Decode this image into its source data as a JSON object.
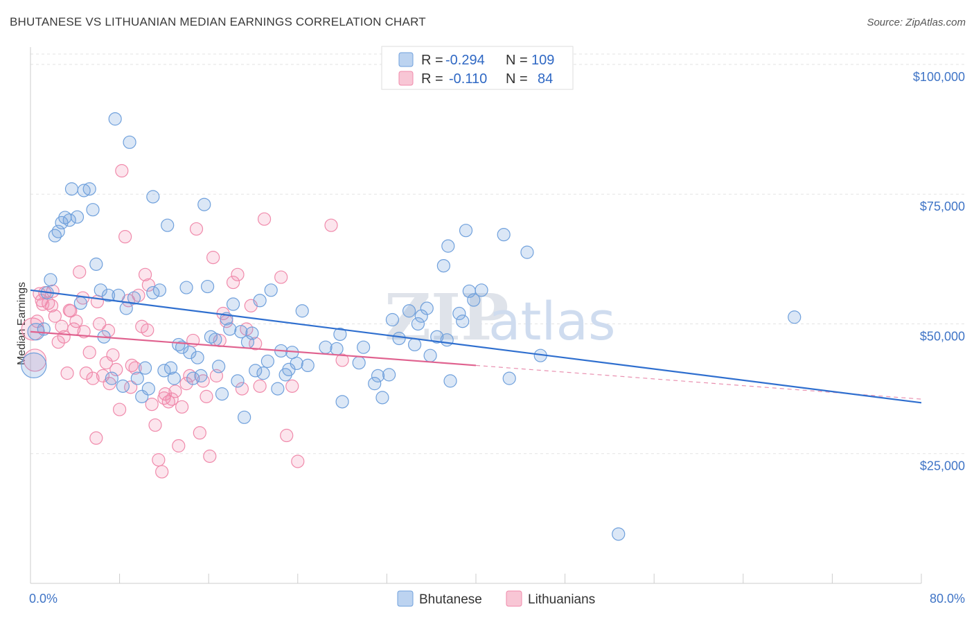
{
  "title": "BHUTANESE VS LITHUANIAN MEDIAN EARNINGS CORRELATION CHART",
  "source": "Source: ZipAtlas.com",
  "watermark": {
    "zip": "ZIP",
    "atlas": "atlas"
  },
  "colors": {
    "bhutanese": "#6fa0dc",
    "lithuanians": "#f08aab",
    "bhutanese_line": "#2f6fcf",
    "lithuanians_line": "#e0628f",
    "tick_text": "#3f74c6"
  },
  "legend_top": {
    "bhutanese": {
      "r_label": "R =",
      "r_value": "-0.294",
      "n_label": "N =",
      "n_value": "109"
    },
    "lithuanians": {
      "r_label": "R =",
      "r_value": "-0.110",
      "n_label": "N =",
      "n_value": "84"
    }
  },
  "legend_bottom": {
    "bhutanese": "Bhutanese",
    "lithuanians": "Lithuanians"
  },
  "chart_data": {
    "type": "scatter",
    "title": "BHUTANESE VS LITHUANIAN MEDIAN EARNINGS CORRELATION CHART",
    "xlabel": "",
    "ylabel": "Median Earnings",
    "x_tick_labels": [
      "0.0%",
      "80.0%"
    ],
    "y_tick_labels": [
      "$25,000",
      "$50,000",
      "$75,000",
      "$100,000"
    ],
    "y_ticks": [
      25000,
      50000,
      75000,
      100000
    ],
    "xlim": [
      0,
      80
    ],
    "ylim": [
      0,
      102000
    ],
    "grid": true,
    "legend_position": "top-center",
    "series": [
      {
        "name": "Bhutanese",
        "points": [
          [
            0.3,
            42000
          ],
          [
            0.5,
            48500
          ],
          [
            1.2,
            49000
          ],
          [
            1.5,
            56000
          ],
          [
            1.8,
            58500
          ],
          [
            2.2,
            67000
          ],
          [
            2.5,
            67800
          ],
          [
            2.8,
            69500
          ],
          [
            3.1,
            70500
          ],
          [
            3.5,
            70000
          ],
          [
            3.7,
            76000
          ],
          [
            4.2,
            70600
          ],
          [
            4.5,
            54000
          ],
          [
            4.8,
            75700
          ],
          [
            5.3,
            76000
          ],
          [
            5.6,
            72000
          ],
          [
            5.9,
            61500
          ],
          [
            6.3,
            56500
          ],
          [
            6.6,
            47500
          ],
          [
            7.0,
            55500
          ],
          [
            7.3,
            39500
          ],
          [
            7.6,
            89500
          ],
          [
            7.9,
            55500
          ],
          [
            8.3,
            38000
          ],
          [
            8.6,
            53000
          ],
          [
            8.9,
            85000
          ],
          [
            9.3,
            55000
          ],
          [
            9.6,
            39500
          ],
          [
            10.0,
            36000
          ],
          [
            10.3,
            41500
          ],
          [
            10.6,
            37500
          ],
          [
            11.0,
            74500
          ],
          [
            11.0,
            56000
          ],
          [
            11.6,
            56500
          ],
          [
            12.0,
            41000
          ],
          [
            12.3,
            69000
          ],
          [
            12.6,
            41500
          ],
          [
            12.9,
            39500
          ],
          [
            13.3,
            46000
          ],
          [
            13.6,
            45500
          ],
          [
            14.0,
            57000
          ],
          [
            14.3,
            44500
          ],
          [
            14.6,
            39500
          ],
          [
            15.0,
            43500
          ],
          [
            15.3,
            40000
          ],
          [
            15.6,
            73000
          ],
          [
            15.9,
            57200
          ],
          [
            16.2,
            47500
          ],
          [
            16.6,
            47000
          ],
          [
            16.9,
            41800
          ],
          [
            17.2,
            36500
          ],
          [
            17.6,
            51000
          ],
          [
            17.9,
            49000
          ],
          [
            18.2,
            53800
          ],
          [
            18.6,
            39000
          ],
          [
            18.9,
            48500
          ],
          [
            19.2,
            32000
          ],
          [
            19.5,
            46500
          ],
          [
            19.9,
            48200
          ],
          [
            20.2,
            41000
          ],
          [
            20.6,
            54500
          ],
          [
            20.9,
            40500
          ],
          [
            21.3,
            42800
          ],
          [
            21.6,
            56500
          ],
          [
            22.2,
            37500
          ],
          [
            22.5,
            44800
          ],
          [
            22.9,
            40200
          ],
          [
            23.2,
            41200
          ],
          [
            23.5,
            44500
          ],
          [
            23.9,
            42400
          ],
          [
            24.4,
            52500
          ],
          [
            24.9,
            42000
          ],
          [
            26.5,
            45500
          ],
          [
            27.5,
            45200
          ],
          [
            27.8,
            48000
          ],
          [
            28.0,
            35000
          ],
          [
            29.5,
            42500
          ],
          [
            29.9,
            45500
          ],
          [
            30.9,
            38500
          ],
          [
            31.2,
            40000
          ],
          [
            31.6,
            35800
          ],
          [
            32.2,
            40200
          ],
          [
            32.5,
            50800
          ],
          [
            33.1,
            47200
          ],
          [
            34.0,
            52500
          ],
          [
            34.5,
            46000
          ],
          [
            34.8,
            50000
          ],
          [
            35.1,
            51500
          ],
          [
            35.6,
            53000
          ],
          [
            35.9,
            43900
          ],
          [
            36.5,
            47500
          ],
          [
            37.1,
            61200
          ],
          [
            37.4,
            46900
          ],
          [
            37.7,
            39000
          ],
          [
            37.5,
            65000
          ],
          [
            38.5,
            52000
          ],
          [
            38.8,
            50500
          ],
          [
            39.1,
            68000
          ],
          [
            39.4,
            56300
          ],
          [
            39.8,
            54600
          ],
          [
            40.5,
            56500
          ],
          [
            42.5,
            67200
          ],
          [
            43.0,
            39500
          ],
          [
            44.6,
            63800
          ],
          [
            45.8,
            43900
          ],
          [
            52.8,
            9500
          ],
          [
            68.6,
            51300
          ]
        ],
        "trend": {
          "x": [
            0,
            80
          ],
          "y": [
            56500,
            34800
          ]
        }
      },
      {
        "name": "Lithuanians",
        "points": [
          [
            0.2,
            49000
          ],
          [
            0.4,
            43000
          ],
          [
            0.6,
            50500
          ],
          [
            1.0,
            54500
          ],
          [
            1.3,
            56000
          ],
          [
            1.6,
            54000
          ],
          [
            1.9,
            53500
          ],
          [
            2.2,
            51500
          ],
          [
            2.5,
            46500
          ],
          [
            2.8,
            49500
          ],
          [
            3.0,
            47500
          ],
          [
            3.3,
            40500
          ],
          [
            3.6,
            52500
          ],
          [
            3.9,
            49000
          ],
          [
            4.1,
            50500
          ],
          [
            4.4,
            60000
          ],
          [
            4.7,
            55000
          ],
          [
            5.0,
            40500
          ],
          [
            5.3,
            44500
          ],
          [
            5.6,
            39500
          ],
          [
            5.9,
            28000
          ],
          [
            6.2,
            50000
          ],
          [
            6.5,
            40000
          ],
          [
            6.8,
            42500
          ],
          [
            7.1,
            38500
          ],
          [
            7.4,
            44000
          ],
          [
            7.7,
            41200
          ],
          [
            8.0,
            33500
          ],
          [
            8.2,
            79500
          ],
          [
            8.5,
            66800
          ],
          [
            8.8,
            54500
          ],
          [
            9.1,
            42000
          ],
          [
            9.4,
            41500
          ],
          [
            9.7,
            55500
          ],
          [
            10.0,
            49500
          ],
          [
            10.3,
            59500
          ],
          [
            10.6,
            57500
          ],
          [
            10.9,
            34500
          ],
          [
            11.2,
            30500
          ],
          [
            11.5,
            23800
          ],
          [
            11.8,
            21500
          ],
          [
            12.1,
            36500
          ],
          [
            12.4,
            35000
          ],
          [
            12.7,
            35500
          ],
          [
            13.0,
            37000
          ],
          [
            13.3,
            26500
          ],
          [
            13.6,
            34000
          ],
          [
            14.0,
            38500
          ],
          [
            14.3,
            40000
          ],
          [
            14.6,
            46800
          ],
          [
            14.9,
            68300
          ],
          [
            15.2,
            29000
          ],
          [
            15.5,
            39000
          ],
          [
            15.8,
            36000
          ],
          [
            16.1,
            24500
          ],
          [
            16.4,
            62800
          ],
          [
            16.7,
            40000
          ],
          [
            17.0,
            46800
          ],
          [
            17.3,
            52000
          ],
          [
            17.6,
            50500
          ],
          [
            18.2,
            58000
          ],
          [
            18.6,
            59500
          ],
          [
            19.0,
            37500
          ],
          [
            19.4,
            49000
          ],
          [
            19.8,
            53500
          ],
          [
            20.2,
            46200
          ],
          [
            20.6,
            38000
          ],
          [
            21.0,
            70200
          ],
          [
            22.5,
            59000
          ],
          [
            23.0,
            28500
          ],
          [
            23.5,
            38000
          ],
          [
            24.0,
            23500
          ],
          [
            27.0,
            69000
          ],
          [
            28.0,
            43000
          ],
          [
            0.8,
            55800
          ],
          [
            1.1,
            53800
          ],
          [
            2.0,
            56300
          ],
          [
            3.5,
            52600
          ],
          [
            4.8,
            48500
          ],
          [
            6.0,
            54300
          ],
          [
            7.0,
            48700
          ],
          [
            9.0,
            37800
          ],
          [
            10.5,
            48800
          ],
          [
            12.0,
            35700
          ]
        ],
        "trend": {
          "x": [
            0,
            40
          ],
          "y": [
            48500,
            42000
          ]
        },
        "trend_extension": {
          "x": [
            40,
            80
          ],
          "y": [
            42000,
            35500
          ]
        }
      }
    ]
  }
}
